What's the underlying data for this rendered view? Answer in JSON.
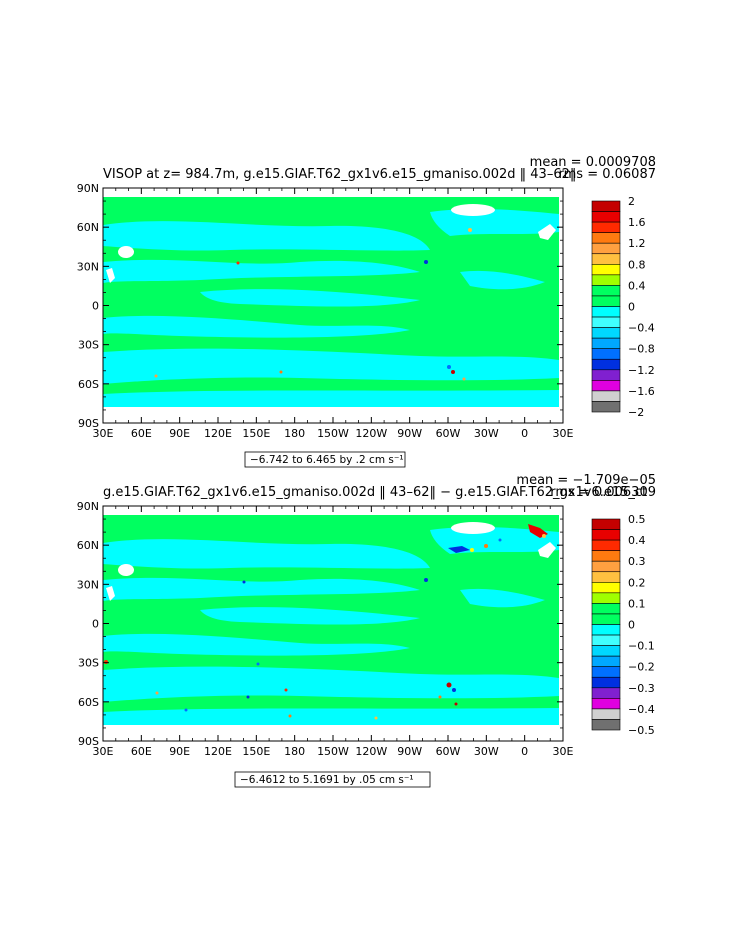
{
  "chart_data": [
    {
      "type": "heatmap",
      "title": "VISOP at z= 984.7m, g.e15.GIAF.T62_gx1v6.e15_gmaniso.002d ‖ 43–62‖",
      "mean_text": "mean = 0.0009708",
      "rms_text": "rms = 0.06087",
      "range_text": "−6.742 to 6.465 by .2 cm s⁻¹",
      "x_ticks": [
        "30E",
        "60E",
        "90E",
        "120E",
        "150E",
        "180",
        "150W",
        "120W",
        "90W",
        "60W",
        "30W",
        "0",
        "30E"
      ],
      "y_ticks": [
        "90N",
        "60N",
        "30N",
        "0",
        "30S",
        "60S",
        "90S"
      ],
      "colorbar_labels": [
        "2",
        "1.6",
        "1.2",
        "0.8",
        "0.4",
        "0",
        "−0.4",
        "−0.8",
        "−1.2",
        "−1.6",
        "−2"
      ],
      "colorbar_colors": [
        "#c40000",
        "#e80000",
        "#ff2a00",
        "#ff7a10",
        "#ffa040",
        "#ffc040",
        "#ffff00",
        "#a0ff00",
        "#00ff60",
        "#00ff60",
        "#00ffff",
        "#40ffff",
        "#00d8ff",
        "#00a8ff",
        "#0070ff",
        "#0030e0",
        "#8020d0",
        "#e000e0",
        "#d0d0d0",
        "#707070"
      ]
    },
    {
      "type": "heatmap",
      "title": "g.e15.GIAF.T62_gx1v6.e15_gmaniso.002d ‖ 43–62‖ − g.e15.GIAF.T62_gx1v6.e15_ct",
      "mean_text": "mean = −1.709e−05",
      "rms_text": "rms = 0.006309",
      "range_text": "−6.4612 to 5.1691 by .05 cm s⁻¹",
      "x_ticks": [
        "30E",
        "60E",
        "90E",
        "120E",
        "150E",
        "180",
        "150W",
        "120W",
        "90W",
        "60W",
        "30W",
        "0",
        "30E"
      ],
      "y_ticks": [
        "90N",
        "60N",
        "30N",
        "0",
        "30S",
        "60S",
        "90S"
      ],
      "colorbar_labels": [
        "0.5",
        "0.4",
        "0.3",
        "0.2",
        "0.1",
        "0",
        "−0.1",
        "−0.2",
        "−0.3",
        "−0.4",
        "−0.5"
      ],
      "colorbar_colors": [
        "#c40000",
        "#e80000",
        "#ff2a00",
        "#ff7a10",
        "#ffa040",
        "#ffc040",
        "#ffff00",
        "#a0ff00",
        "#00ff60",
        "#00ff60",
        "#00ffff",
        "#40ffff",
        "#00d8ff",
        "#00a8ff",
        "#0070ff",
        "#0030e0",
        "#8020d0",
        "#e000e0",
        "#d0d0d0",
        "#707070"
      ]
    }
  ]
}
